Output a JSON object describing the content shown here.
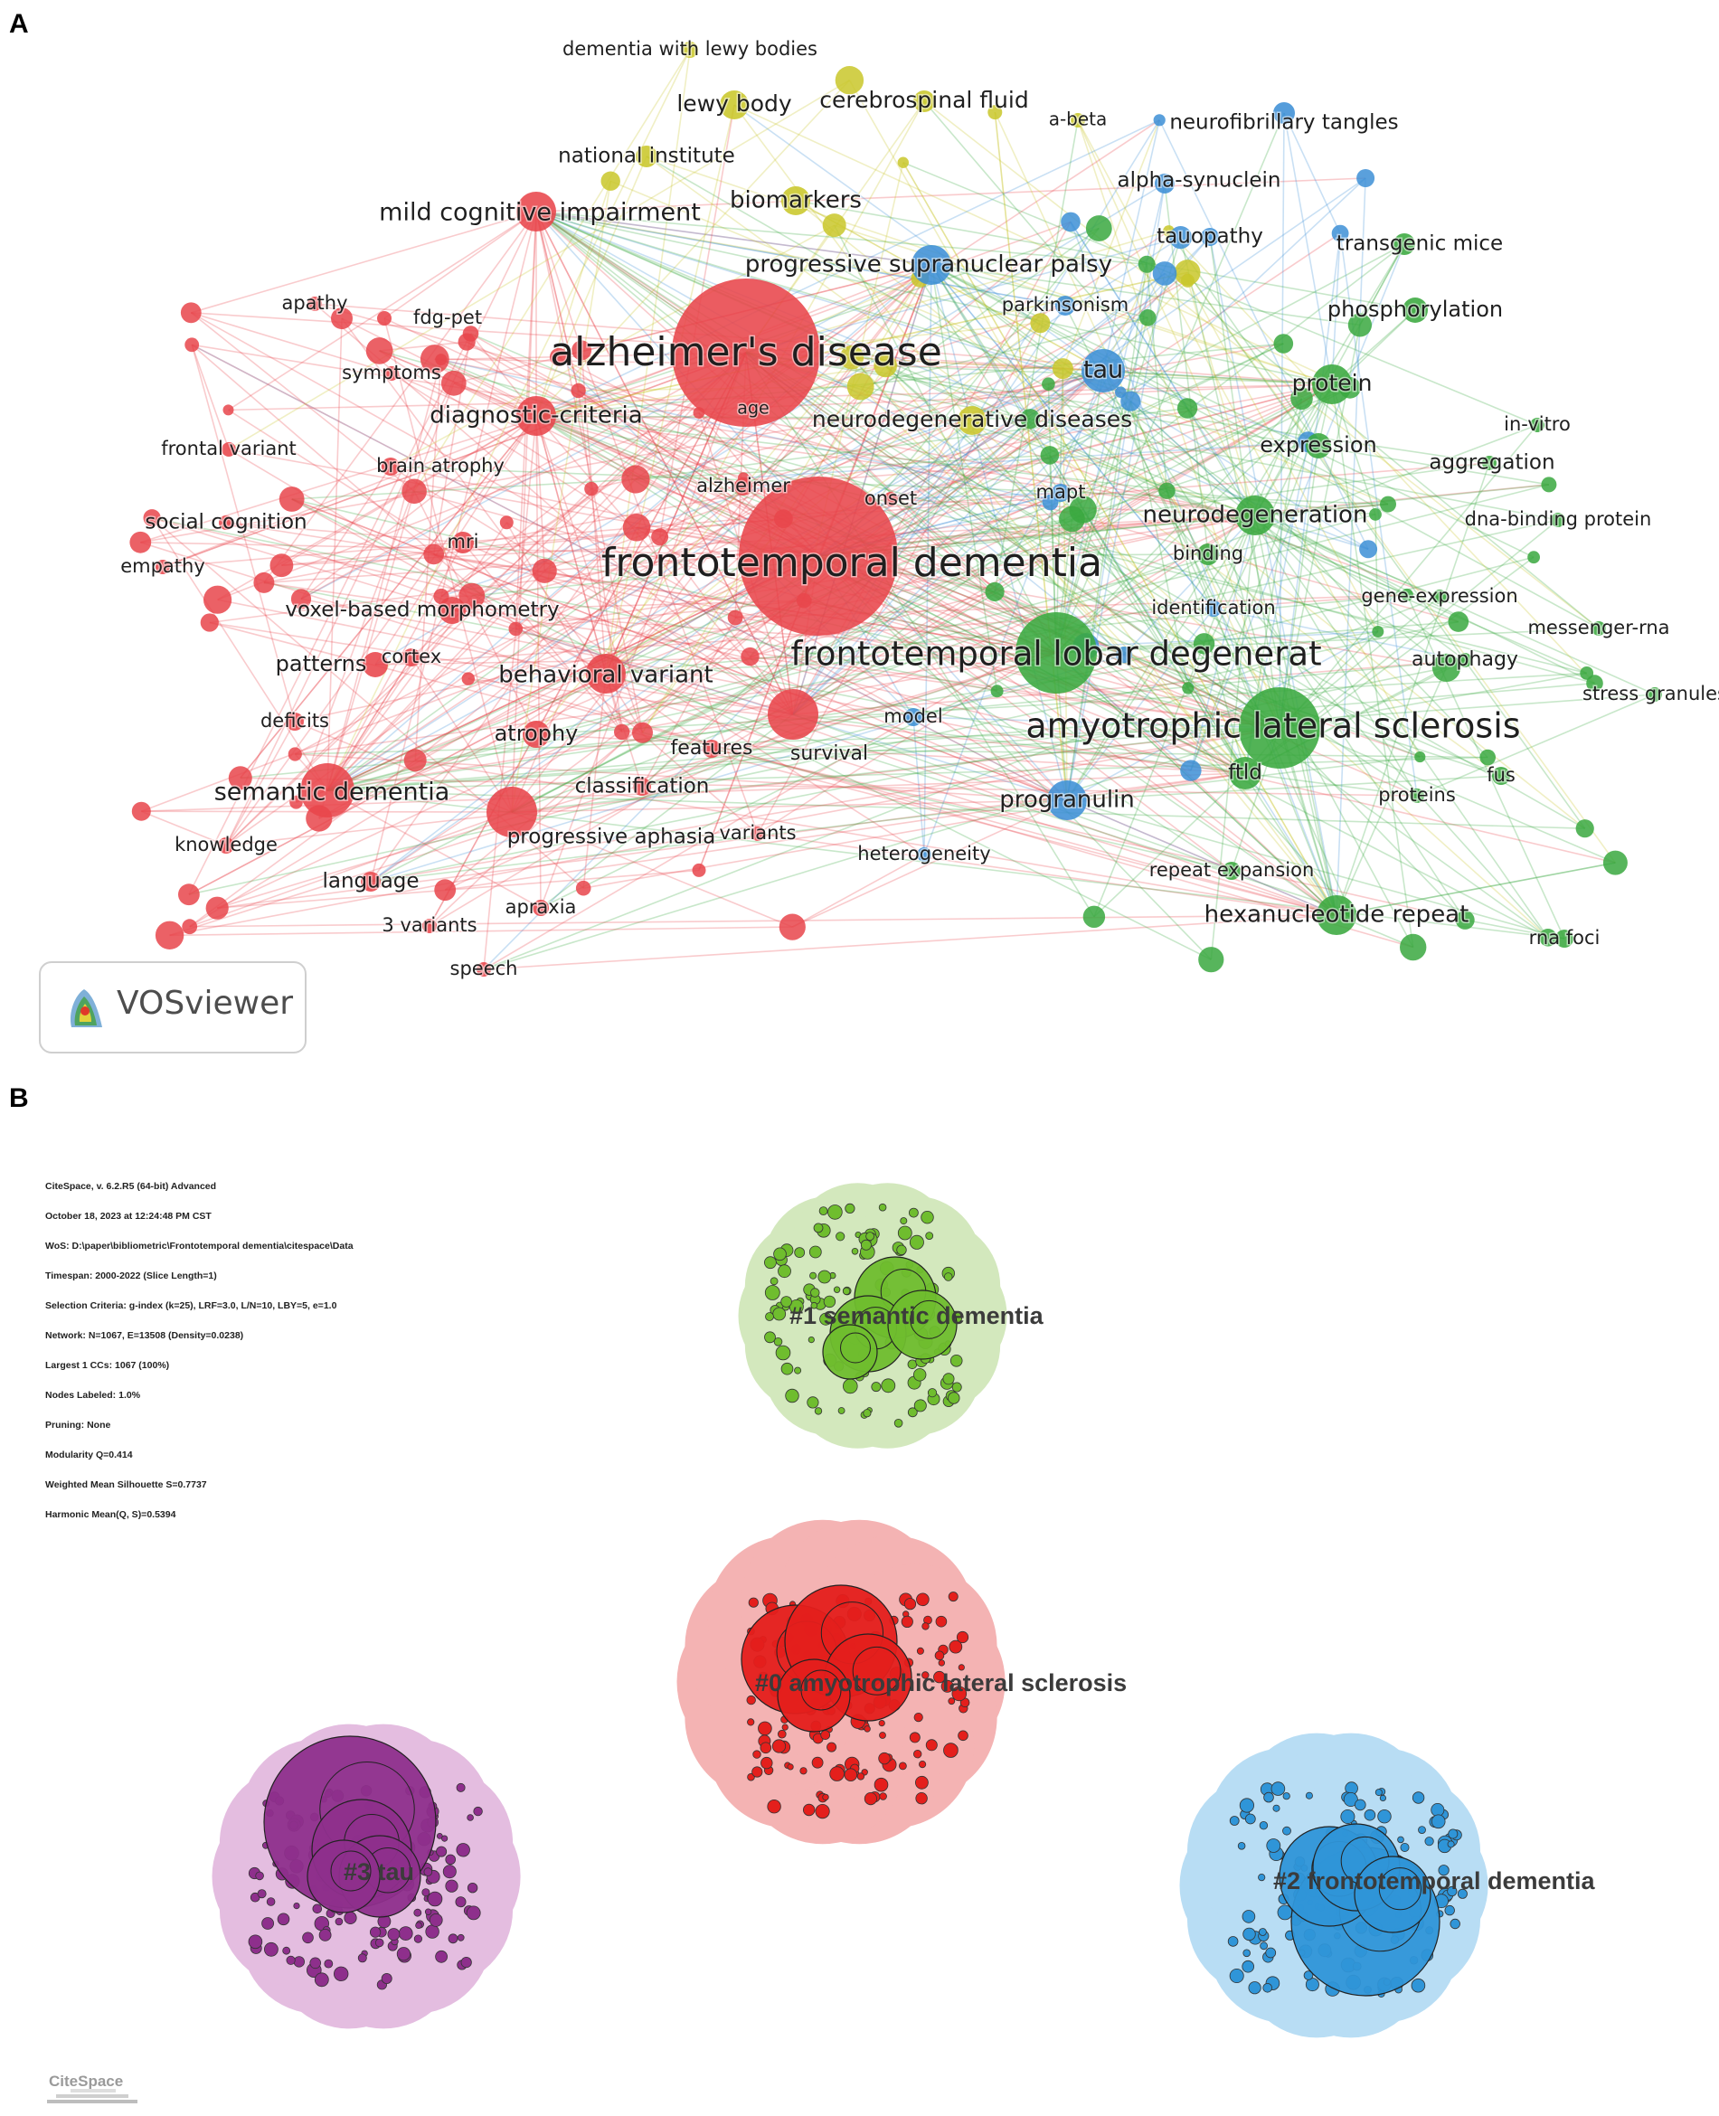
{
  "panels": {
    "a": "A",
    "b": "B"
  },
  "vosviewer": {
    "brand": "VOSviewer",
    "clusters": {
      "red": "#e8454b",
      "yellow": "#c9c72a",
      "blue": "#3d8fd6",
      "green": "#3aa83f"
    },
    "nodes": [
      {
        "label": "alzheimer's disease",
        "cluster": "red"
      },
      {
        "label": "frontotemporal dementia",
        "cluster": "red"
      },
      {
        "label": "mild cognitive impairment",
        "cluster": "red"
      },
      {
        "label": "diagnostic-criteria",
        "cluster": "red"
      },
      {
        "label": "semantic dementia",
        "cluster": "red"
      },
      {
        "label": "behavioral variant",
        "cluster": "red"
      },
      {
        "label": "voxel-based morphometry",
        "cluster": "red"
      },
      {
        "label": "social cognition",
        "cluster": "red"
      },
      {
        "label": "patterns",
        "cluster": "red"
      },
      {
        "label": "atrophy",
        "cluster": "red"
      },
      {
        "label": "apathy",
        "cluster": "red"
      },
      {
        "label": "fdg-pet",
        "cluster": "red"
      },
      {
        "label": "symptoms",
        "cluster": "red"
      },
      {
        "label": "frontal variant",
        "cluster": "red"
      },
      {
        "label": "brain atrophy",
        "cluster": "red"
      },
      {
        "label": "empathy",
        "cluster": "red"
      },
      {
        "label": "mri",
        "cluster": "red"
      },
      {
        "label": "cortex",
        "cluster": "red"
      },
      {
        "label": "deficits",
        "cluster": "red"
      },
      {
        "label": "knowledge",
        "cluster": "red"
      },
      {
        "label": "language",
        "cluster": "red"
      },
      {
        "label": "3 variants",
        "cluster": "red"
      },
      {
        "label": "speech",
        "cluster": "red"
      },
      {
        "label": "apraxia",
        "cluster": "red"
      },
      {
        "label": "progressive aphasia",
        "cluster": "red"
      },
      {
        "label": "classification",
        "cluster": "red"
      },
      {
        "label": "variants",
        "cluster": "red"
      },
      {
        "label": "features",
        "cluster": "red"
      },
      {
        "label": "survival",
        "cluster": "red"
      },
      {
        "label": "alzheimer",
        "cluster": "red"
      },
      {
        "label": "age",
        "cluster": "red"
      },
      {
        "label": "onset",
        "cluster": "red"
      },
      {
        "label": "dementia with lewy bodies",
        "cluster": "yellow"
      },
      {
        "label": "lewy body",
        "cluster": "yellow"
      },
      {
        "label": "cerebrospinal fluid",
        "cluster": "yellow"
      },
      {
        "label": "a-beta",
        "cluster": "yellow"
      },
      {
        "label": "national institute",
        "cluster": "yellow"
      },
      {
        "label": "biomarkers",
        "cluster": "yellow"
      },
      {
        "label": "neurodegenerative diseases",
        "cluster": "yellow"
      },
      {
        "label": "neurofibrillary tangles",
        "cluster": "blue"
      },
      {
        "label": "alpha-synuclein",
        "cluster": "blue"
      },
      {
        "label": "tauopathy",
        "cluster": "blue"
      },
      {
        "label": "progressive supranuclear palsy",
        "cluster": "blue"
      },
      {
        "label": "parkinsonism",
        "cluster": "blue"
      },
      {
        "label": "tau",
        "cluster": "blue"
      },
      {
        "label": "mapt",
        "cluster": "blue"
      },
      {
        "label": "identification",
        "cluster": "blue"
      },
      {
        "label": "model",
        "cluster": "blue"
      },
      {
        "label": "progranulin",
        "cluster": "blue"
      },
      {
        "label": "heterogeneity",
        "cluster": "blue"
      },
      {
        "label": "transgenic mice",
        "cluster": "green"
      },
      {
        "label": "phosphorylation",
        "cluster": "green"
      },
      {
        "label": "protein",
        "cluster": "green"
      },
      {
        "label": "in-vitro",
        "cluster": "green"
      },
      {
        "label": "expression",
        "cluster": "green"
      },
      {
        "label": "aggregation",
        "cluster": "green"
      },
      {
        "label": "neurodegeneration",
        "cluster": "green"
      },
      {
        "label": "dna-binding protein",
        "cluster": "green"
      },
      {
        "label": "binding",
        "cluster": "green"
      },
      {
        "label": "gene-expression",
        "cluster": "green"
      },
      {
        "label": "messenger-rna",
        "cluster": "green"
      },
      {
        "label": "frontotemporal lobar degenerat",
        "cluster": "green"
      },
      {
        "label": "autophagy",
        "cluster": "green"
      },
      {
        "label": "stress granules",
        "cluster": "green"
      },
      {
        "label": "amyotrophic lateral sclerosis",
        "cluster": "green"
      },
      {
        "label": "ftld",
        "cluster": "green"
      },
      {
        "label": "fus",
        "cluster": "green"
      },
      {
        "label": "proteins",
        "cluster": "green"
      },
      {
        "label": "repeat expansion",
        "cluster": "green"
      },
      {
        "label": "hexanucleotide repeat",
        "cluster": "green"
      },
      {
        "label": "rna foci",
        "cluster": "green"
      }
    ]
  },
  "citespace": {
    "brand": "CiteSpace",
    "info_lines": [
      "CiteSpace, v. 6.2.R5 (64-bit) Advanced",
      "October 18, 2023 at 12:24:48 PM CST",
      "WoS: D:\\paper\\bibliometric\\Frontotemporal dementia\\citespace\\Data",
      "Timespan: 2000-2022 (Slice Length=1)",
      "Selection Criteria: g-index (k=25), LRF=3.0, L/N=10, LBY=5, e=1.0",
      "Network: N=1067, E=13508 (Density=0.0238)",
      "Largest 1 CCs: 1067 (100%)",
      "Nodes Labeled: 1.0%",
      "Pruning: None",
      "Modularity Q=0.414",
      "Weighted Mean Silhouette S=0.7737",
      "Harmonic Mean(Q, S)=0.5394"
    ],
    "clusters": [
      {
        "label": "#0 amyotrophic lateral sclerosis",
        "color": "#e41f1c",
        "halo": "#f4b3b3"
      },
      {
        "label": "#1 semantic dementia",
        "color": "#6fbd2e",
        "halo": "#d3e8bd"
      },
      {
        "label": "#2 frontotemporal dementia",
        "color": "#2f95d8",
        "halo": "#b8ddf4"
      },
      {
        "label": "#3 tau",
        "color": "#8e2f8c",
        "halo": "#e4bde0"
      }
    ]
  }
}
